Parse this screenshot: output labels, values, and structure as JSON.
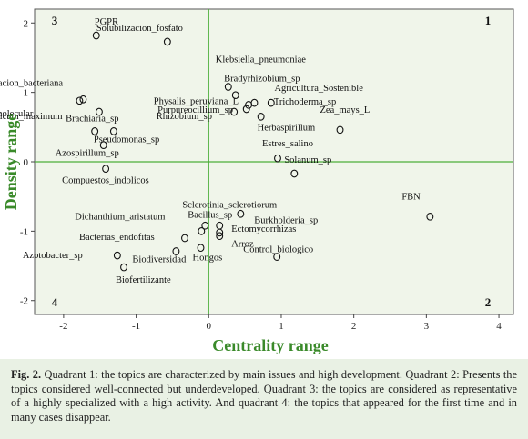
{
  "chart_data": {
    "type": "scatter",
    "xlabel": "Centrality range",
    "ylabel": "Density range",
    "xlim": [
      -2.4,
      4.2
    ],
    "ylim": [
      -2.2,
      2.2
    ],
    "x_ticks": [
      -2,
      -1,
      0,
      1,
      2,
      3,
      4
    ],
    "y_ticks": [
      -2,
      -1,
      0,
      1,
      2
    ],
    "quadrant_labels": [
      "1",
      "2",
      "3",
      "4"
    ],
    "background_color": "#f0f5ea",
    "axis_label_color": "#3a8a2a",
    "reference_line_color": "#4caf3a",
    "points": [
      {
        "label": "PGPR",
        "x": -1.55,
        "y": 1.82
      },
      {
        "label": "Solubilizacion_fosfato",
        "x": -0.57,
        "y": 1.73
      },
      {
        "label": "Klebsiella_pneumoniae",
        "x": 0.27,
        "y": 1.08
      },
      {
        "label": "Perservacion_bacteriana",
        "x": -1.73,
        "y": 0.9
      },
      {
        "label": "Filogenia_molecular",
        "x": -1.78,
        "y": 0.88
      },
      {
        "label": "Physalis_peruviana_L",
        "x": 0.37,
        "y": 0.96
      },
      {
        "label": "Bradyrhizobium_sp",
        "x": 0.55,
        "y": 0.82
      },
      {
        "label": "Agricultura_Sostenible",
        "x": 0.63,
        "y": 0.85
      },
      {
        "label": "Trichoderma_sp",
        "x": 0.86,
        "y": 0.85
      },
      {
        "label": "Panicum_maximum",
        "x": -1.51,
        "y": 0.72
      },
      {
        "label": "Purpureocillium_sp",
        "x": 0.35,
        "y": 0.72
      },
      {
        "label": "Herbaspirillum",
        "x": 0.72,
        "y": 0.65
      },
      {
        "label": "Rhizobium_sp",
        "x": 0.52,
        "y": 0.76
      },
      {
        "label": "Zea_mays_L",
        "x": 1.81,
        "y": 0.46
      },
      {
        "label": "Brachiaria_sp",
        "x": -1.57,
        "y": 0.44
      },
      {
        "label": "Pseudomonas_sp",
        "x": -1.31,
        "y": 0.44
      },
      {
        "label": "Azospirillum_sp",
        "x": -1.45,
        "y": 0.24
      },
      {
        "label": "Estres_salino",
        "x": 0.95,
        "y": 0.05
      },
      {
        "label": "Solanum_sp",
        "x": 1.18,
        "y": -0.17
      },
      {
        "label": "Compuestos_indolicos",
        "x": -1.42,
        "y": -0.1
      },
      {
        "label": "FBN",
        "x": 3.05,
        "y": -0.79
      },
      {
        "label": "Sclerotinia_sclerotiorum",
        "x": 0.44,
        "y": -0.75
      },
      {
        "label": "Bacillus_sp",
        "x": 0.15,
        "y": -0.92
      },
      {
        "label": "Burkholderia_sp",
        "x": -0.05,
        "y": -0.92
      },
      {
        "label": "Dichanthium_aristatum",
        "x": -0.1,
        "y": -1.0
      },
      {
        "label": "Bacterias_endofitas",
        "x": -0.33,
        "y": -1.1
      },
      {
        "label": "Ectomycorrhizas",
        "x": 0.15,
        "y": -1.02
      },
      {
        "label": "Arroz",
        "x": 0.15,
        "y": -1.07
      },
      {
        "label": "Azotobacter_sp",
        "x": -1.26,
        "y": -1.35
      },
      {
        "label": "Biodiversidad",
        "x": -0.45,
        "y": -1.29
      },
      {
        "label": "Hongos",
        "x": -0.11,
        "y": -1.24
      },
      {
        "label": "Control_biologico",
        "x": 0.94,
        "y": -1.37
      },
      {
        "label": "Biofertilizante",
        "x": -1.17,
        "y": -1.52
      }
    ]
  },
  "caption": {
    "fig_label": "Fig. 2.",
    "text": " Quadrant 1: the topics are characterized by main issues and high development. Quadrant 2: Presents the topics considered well-connected but underdeveloped. Quadrant 3: the topics are considered as representative of a highly specialized with a high activity. And quadrant 4: the topics that appeared for the first time and in many cases disappear."
  }
}
